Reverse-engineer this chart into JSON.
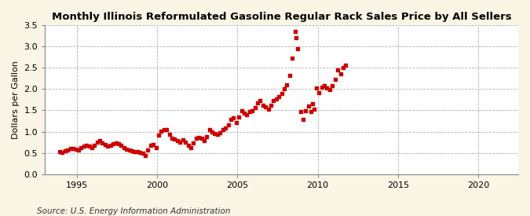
{
  "title": "Monthly Illinois Reformulated Gasoline Regular Rack Sales Price by All Sellers",
  "ylabel": "Dollars per Gallon",
  "source": "Source: U.S. Energy Information Administration",
  "bg_color": "#FAF5E4",
  "plot_bg": "#FFFFFF",
  "marker_color": "#CC0000",
  "xlim": [
    1993.0,
    2022.5
  ],
  "ylim": [
    0.0,
    3.5
  ],
  "yticks": [
    0.0,
    0.5,
    1.0,
    1.5,
    2.0,
    2.5,
    3.0,
    3.5
  ],
  "xticks": [
    1995,
    2000,
    2005,
    2010,
    2015,
    2020
  ],
  "data": [
    [
      1993.92,
      0.53
    ],
    [
      1994.08,
      0.52
    ],
    [
      1994.25,
      0.55
    ],
    [
      1994.42,
      0.57
    ],
    [
      1994.58,
      0.6
    ],
    [
      1994.75,
      0.61
    ],
    [
      1994.92,
      0.58
    ],
    [
      1995.08,
      0.57
    ],
    [
      1995.25,
      0.62
    ],
    [
      1995.42,
      0.66
    ],
    [
      1995.58,
      0.68
    ],
    [
      1995.75,
      0.65
    ],
    [
      1995.92,
      0.63
    ],
    [
      1996.08,
      0.68
    ],
    [
      1996.25,
      0.76
    ],
    [
      1996.42,
      0.79
    ],
    [
      1996.58,
      0.74
    ],
    [
      1996.75,
      0.7
    ],
    [
      1996.92,
      0.66
    ],
    [
      1997.08,
      0.68
    ],
    [
      1997.25,
      0.71
    ],
    [
      1997.42,
      0.73
    ],
    [
      1997.58,
      0.71
    ],
    [
      1997.75,
      0.67
    ],
    [
      1997.92,
      0.62
    ],
    [
      1998.08,
      0.59
    ],
    [
      1998.25,
      0.56
    ],
    [
      1998.42,
      0.54
    ],
    [
      1998.58,
      0.53
    ],
    [
      1998.75,
      0.53
    ],
    [
      1998.92,
      0.51
    ],
    [
      1999.08,
      0.49
    ],
    [
      1999.25,
      0.44
    ],
    [
      1999.42,
      0.56
    ],
    [
      1999.58,
      0.67
    ],
    [
      1999.75,
      0.69
    ],
    [
      1999.92,
      0.63
    ],
    [
      2000.08,
      0.92
    ],
    [
      2000.25,
      1.01
    ],
    [
      2000.42,
      1.05
    ],
    [
      2000.58,
      1.04
    ],
    [
      2000.75,
      0.94
    ],
    [
      2000.92,
      0.84
    ],
    [
      2001.08,
      0.82
    ],
    [
      2001.25,
      0.78
    ],
    [
      2001.42,
      0.75
    ],
    [
      2001.58,
      0.8
    ],
    [
      2001.75,
      0.76
    ],
    [
      2001.92,
      0.68
    ],
    [
      2002.08,
      0.63
    ],
    [
      2002.25,
      0.73
    ],
    [
      2002.42,
      0.84
    ],
    [
      2002.58,
      0.87
    ],
    [
      2002.75,
      0.84
    ],
    [
      2002.92,
      0.78
    ],
    [
      2003.08,
      0.88
    ],
    [
      2003.25,
      1.05
    ],
    [
      2003.42,
      1.0
    ],
    [
      2003.58,
      0.95
    ],
    [
      2003.75,
      0.93
    ],
    [
      2003.92,
      0.98
    ],
    [
      2004.08,
      1.04
    ],
    [
      2004.25,
      1.08
    ],
    [
      2004.42,
      1.15
    ],
    [
      2004.58,
      1.28
    ],
    [
      2004.75,
      1.32
    ],
    [
      2004.92,
      1.22
    ],
    [
      2005.08,
      1.35
    ],
    [
      2005.25,
      1.48
    ],
    [
      2005.42,
      1.43
    ],
    [
      2005.58,
      1.4
    ],
    [
      2005.75,
      1.47
    ],
    [
      2005.92,
      1.48
    ],
    [
      2006.08,
      1.56
    ],
    [
      2006.25,
      1.68
    ],
    [
      2006.42,
      1.72
    ],
    [
      2006.58,
      1.62
    ],
    [
      2006.75,
      1.58
    ],
    [
      2006.92,
      1.52
    ],
    [
      2007.08,
      1.62
    ],
    [
      2007.25,
      1.73
    ],
    [
      2007.42,
      1.77
    ],
    [
      2007.58,
      1.82
    ],
    [
      2007.75,
      1.9
    ],
    [
      2007.92,
      2.0
    ],
    [
      2008.08,
      2.1
    ],
    [
      2008.25,
      2.32
    ],
    [
      2008.42,
      2.72
    ],
    [
      2008.58,
      3.35
    ],
    [
      2008.67,
      3.2
    ],
    [
      2008.75,
      2.95
    ],
    [
      2008.92,
      1.47
    ],
    [
      2009.08,
      1.28
    ],
    [
      2009.25,
      1.48
    ],
    [
      2009.42,
      1.6
    ],
    [
      2009.58,
      1.47
    ],
    [
      2009.67,
      1.65
    ],
    [
      2009.75,
      1.52
    ],
    [
      2009.92,
      2.02
    ],
    [
      2010.08,
      1.92
    ],
    [
      2010.25,
      2.05
    ],
    [
      2010.42,
      2.08
    ],
    [
      2010.58,
      2.03
    ],
    [
      2010.75,
      1.98
    ],
    [
      2010.92,
      2.08
    ],
    [
      2011.08,
      2.22
    ],
    [
      2011.25,
      2.45
    ],
    [
      2011.42,
      2.35
    ],
    [
      2011.58,
      2.5
    ],
    [
      2011.75,
      2.55
    ]
  ],
  "title_fontsize": 9.5,
  "label_fontsize": 8,
  "tick_fontsize": 8,
  "source_fontsize": 7.5
}
